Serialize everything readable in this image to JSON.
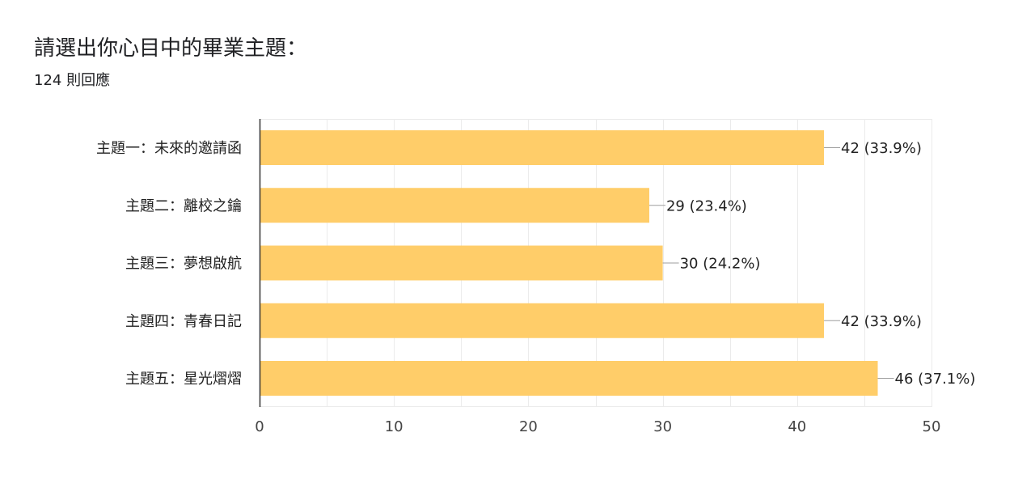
{
  "form": {
    "question_title": "請選出你心目中的畢業主題：",
    "response_count": "124 則回應"
  },
  "colors": {
    "bar": "#FFCD69",
    "grid": "#EBEBEB",
    "axis": "#333333",
    "leader": "#9E9E9E"
  },
  "chart_data": {
    "type": "bar",
    "orientation": "horizontal",
    "categories": [
      "主題一：未來的邀請函",
      "主題二：離校之鑰",
      "主題三：夢想啟航",
      "主題四：青春日記",
      "主題五：星光熠熠"
    ],
    "values": [
      42,
      29,
      30,
      42,
      46
    ],
    "data_labels": [
      "42 (33.9%)",
      "29 (23.4%)",
      "30 (24.2%)",
      "42 (33.9%)",
      "46 (37.1%)"
    ],
    "xlim": [
      0,
      50
    ],
    "xticks": [
      0,
      10,
      20,
      30,
      40,
      50
    ],
    "minor_gridlines": true,
    "grid": true,
    "legend": "none"
  }
}
